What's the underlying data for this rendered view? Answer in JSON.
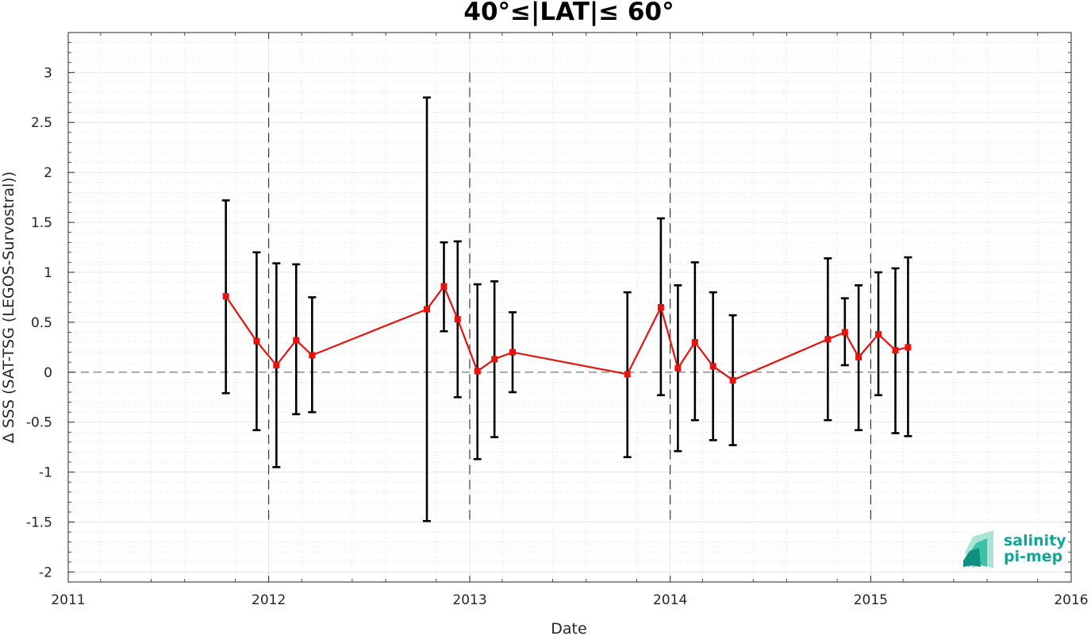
{
  "chart_data": {
    "type": "line",
    "title": "40°≤|LAT|≤ 60°",
    "xlabel": "Date",
    "ylabel": "Δ SSS (SAT-TSG (LEGOS-Survostral))",
    "x_ticks": [
      "2011",
      "2012",
      "2013",
      "2014",
      "2015",
      "2016"
    ],
    "y_ticks": [
      "3",
      "2.5",
      "2",
      "1.5",
      "1",
      "0.5",
      "0",
      "-0.5",
      "-1",
      "-1.5",
      "-2"
    ],
    "xlim": [
      "2011-01-01",
      "2016-01-01"
    ],
    "ylim": [
      -2.1,
      3.4
    ],
    "grid": true,
    "reference_line": {
      "y": 0,
      "style": "dashed"
    },
    "year_boundaries": [
      "2012-01-01",
      "2013-01-01",
      "2014-01-01",
      "2015-01-01"
    ],
    "series": [
      {
        "color": "#e8110c",
        "marker": "square",
        "points": [
          {
            "x": "2011-10-15",
            "y": 0.76,
            "low": -0.21,
            "high": 1.72
          },
          {
            "x": "2011-12-10",
            "y": 0.31,
            "low": -0.58,
            "high": 1.2
          },
          {
            "x": "2012-01-15",
            "y": 0.07,
            "low": -0.95,
            "high": 1.09
          },
          {
            "x": "2012-02-20",
            "y": 0.32,
            "low": -0.42,
            "high": 1.08
          },
          {
            "x": "2012-03-20",
            "y": 0.17,
            "low": -0.4,
            "high": 0.75
          },
          {
            "x": "2012-10-15",
            "y": 0.63,
            "low": -1.49,
            "high": 2.75
          },
          {
            "x": "2012-11-15",
            "y": 0.86,
            "low": 0.41,
            "high": 1.3
          },
          {
            "x": "2012-12-10",
            "y": 0.53,
            "low": -0.25,
            "high": 1.31
          },
          {
            "x": "2013-01-15",
            "y": 0.01,
            "low": -0.87,
            "high": 0.88
          },
          {
            "x": "2013-02-15",
            "y": 0.13,
            "low": -0.65,
            "high": 0.91
          },
          {
            "x": "2013-03-20",
            "y": 0.2,
            "low": -0.2,
            "high": 0.6
          },
          {
            "x": "2013-10-15",
            "y": -0.02,
            "low": -0.85,
            "high": 0.8
          },
          {
            "x": "2013-12-15",
            "y": 0.65,
            "low": -0.23,
            "high": 1.54
          },
          {
            "x": "2014-01-15",
            "y": 0.04,
            "low": -0.79,
            "high": 0.87
          },
          {
            "x": "2014-02-15",
            "y": 0.3,
            "low": -0.48,
            "high": 1.1
          },
          {
            "x": "2014-03-20",
            "y": 0.06,
            "low": -0.68,
            "high": 0.8
          },
          {
            "x": "2014-04-25",
            "y": -0.08,
            "low": -0.73,
            "high": 0.57
          },
          {
            "x": "2014-10-15",
            "y": 0.33,
            "low": -0.48,
            "high": 1.14
          },
          {
            "x": "2014-11-15",
            "y": 0.4,
            "low": 0.07,
            "high": 0.74
          },
          {
            "x": "2014-12-10",
            "y": 0.15,
            "low": -0.58,
            "high": 0.87
          },
          {
            "x": "2015-01-15",
            "y": 0.38,
            "low": -0.23,
            "high": 1.0
          },
          {
            "x": "2015-02-15",
            "y": 0.22,
            "low": -0.61,
            "high": 1.04
          },
          {
            "x": "2015-03-10",
            "y": 0.25,
            "low": -0.64,
            "high": 1.15
          }
        ]
      }
    ]
  },
  "logo": {
    "line1": "salinity",
    "line2": "pi-mep",
    "text_color": "#15a596",
    "icon_colors": [
      "#0e8f82",
      "#3fbfa6",
      "#a9e4d6"
    ]
  }
}
